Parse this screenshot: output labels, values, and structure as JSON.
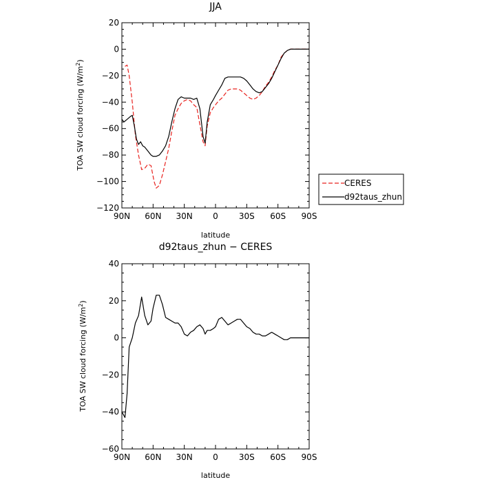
{
  "chart_data": [
    {
      "type": "line",
      "title": "JJA",
      "xlabel": "latitude",
      "ylabel": "TOA SW cloud forcing (W/m",
      "ylabel_sup": "2",
      "ylabel_close": ")",
      "xlim": [
        90,
        -90
      ],
      "ylim": [
        -120,
        20
      ],
      "xticks": [
        90,
        60,
        30,
        0,
        -30,
        -60,
        -90
      ],
      "xtick_labels": [
        "90N",
        "60N",
        "30N",
        "0",
        "30S",
        "60S",
        "90S"
      ],
      "yticks": [
        20,
        0,
        -20,
        -40,
        -60,
        -80,
        -100,
        -120
      ],
      "ytick_labels": [
        "20",
        "0",
        "−20",
        "−40",
        "−60",
        "−80",
        "−100",
        "−120"
      ],
      "legend": {
        "position": "outside-right",
        "entries": [
          "CERES",
          "d92taus_zhun"
        ]
      },
      "series": [
        {
          "name": "CERES",
          "color": "#e8201c",
          "dash": "6,3",
          "x": [
            87,
            85,
            83,
            80,
            77,
            74,
            71,
            68,
            65,
            62,
            59,
            57,
            54,
            51,
            48,
            45,
            42,
            39,
            36,
            33,
            30,
            27,
            24,
            21,
            18,
            15,
            12,
            10,
            8,
            5,
            2,
            0,
            -3,
            -6,
            -9,
            -12,
            -15,
            -18,
            -21,
            -24,
            -27,
            -30,
            -33,
            -36,
            -39,
            -42,
            -45,
            -48,
            -51,
            -54,
            -57,
            -60,
            -63,
            -66,
            -69,
            -72,
            -75,
            -78,
            -81,
            -84,
            -87,
            -90
          ],
          "y": [
            -13,
            -12,
            -20,
            -40,
            -65,
            -80,
            -91,
            -90,
            -87,
            -88,
            -100,
            -105,
            -103,
            -95,
            -85,
            -75,
            -62,
            -50,
            -45,
            -41,
            -39,
            -38,
            -39,
            -42,
            -44,
            -57,
            -70,
            -73,
            -58,
            -48,
            -44,
            -42,
            -39,
            -37,
            -34,
            -31,
            -30,
            -30,
            -30,
            -31,
            -33,
            -35,
            -37,
            -38,
            -37,
            -35,
            -32,
            -28,
            -25,
            -21,
            -16,
            -12,
            -6,
            -3,
            -1,
            0,
            0,
            0,
            0,
            0,
            0,
            0
          ]
        },
        {
          "name": "d92taus_zhun",
          "color": "#000000",
          "dash": "",
          "x": [
            90,
            88,
            85,
            82,
            80,
            78,
            76,
            74,
            72,
            70,
            68,
            65,
            62,
            60,
            57,
            54,
            51,
            48,
            45,
            42,
            39,
            36,
            33,
            30,
            27,
            24,
            21,
            18,
            15,
            12,
            10,
            8,
            5,
            2,
            0,
            -3,
            -6,
            -9,
            -12,
            -15,
            -18,
            -21,
            -24,
            -27,
            -30,
            -33,
            -36,
            -39,
            -42,
            -45,
            -48,
            -51,
            -54,
            -57,
            -60,
            -63,
            -66,
            -69,
            -72,
            -75,
            -78,
            -81,
            -84,
            -87,
            -90
          ],
          "y": [
            -53,
            -55,
            -53,
            -51,
            -50,
            -58,
            -68,
            -72,
            -70,
            -73,
            -74,
            -77,
            -80,
            -81,
            -81,
            -80,
            -77,
            -73,
            -66,
            -55,
            -45,
            -38,
            -36,
            -37,
            -37,
            -37,
            -38,
            -37,
            -45,
            -66,
            -71,
            -55,
            -42,
            -38,
            -35,
            -31,
            -27,
            -22,
            -21,
            -21,
            -21,
            -21,
            -21,
            -22,
            -24,
            -27,
            -30,
            -32,
            -33,
            -32,
            -29,
            -26,
            -22,
            -17,
            -12,
            -7,
            -3,
            -1,
            0,
            0,
            0,
            0,
            0,
            0,
            0
          ]
        }
      ]
    },
    {
      "type": "line",
      "title": "d92taus_zhun − CERES",
      "xlabel": "latitude",
      "ylabel": "TOA SW cloud forcing (W/m",
      "ylabel_sup": "2",
      "ylabel_close": ")",
      "xlim": [
        90,
        -90
      ],
      "ylim": [
        -60,
        40
      ],
      "xticks": [
        90,
        60,
        30,
        0,
        -30,
        -60,
        -90
      ],
      "xtick_labels": [
        "90N",
        "60N",
        "30N",
        "0",
        "30S",
        "60S",
        "90S"
      ],
      "yticks": [
        40,
        20,
        0,
        -20,
        -40,
        -60
      ],
      "ytick_labels": [
        "40",
        "20",
        "0",
        "−20",
        "−40",
        "−60"
      ],
      "series": [
        {
          "color": "#000000",
          "dash": "",
          "x": [
            90,
            87,
            85,
            83,
            80,
            77,
            74,
            71,
            68,
            65,
            62,
            60,
            57,
            54,
            51,
            48,
            45,
            42,
            39,
            36,
            33,
            30,
            27,
            24,
            21,
            18,
            15,
            12,
            10,
            8,
            5,
            2,
            0,
            -3,
            -6,
            -9,
            -12,
            -15,
            -18,
            -21,
            -24,
            -27,
            -30,
            -33,
            -36,
            -39,
            -42,
            -45,
            -48,
            -51,
            -54,
            -57,
            -60,
            -63,
            -66,
            -69,
            -72,
            -75,
            -78,
            -81,
            -84,
            -87,
            -90
          ],
          "y": [
            -40,
            -43,
            -30,
            -5,
            0,
            8,
            12,
            22,
            12,
            7,
            9,
            16,
            23,
            23,
            18,
            11,
            10,
            9,
            8,
            8,
            6,
            2,
            1,
            3,
            4,
            6,
            7,
            5,
            2,
            4,
            4,
            5,
            6,
            10,
            11,
            9,
            7,
            8,
            9,
            10,
            10,
            8,
            6,
            5,
            3,
            2,
            2,
            1,
            1,
            2,
            3,
            2,
            1,
            0,
            -1,
            -1,
            0,
            0,
            0,
            0,
            0,
            0,
            0
          ]
        }
      ]
    }
  ]
}
